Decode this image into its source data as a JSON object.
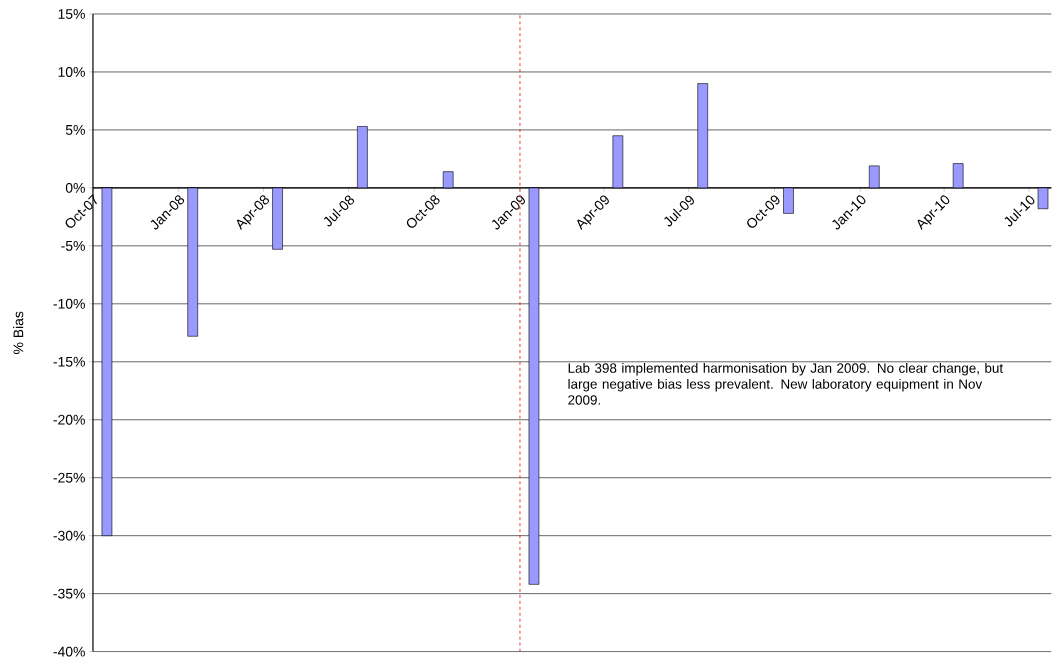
{
  "chart_data": {
    "type": "bar",
    "ylabel": "% Bias",
    "x": [
      "2007-10-16",
      "2008-01-16",
      "2008-04-16",
      "2008-07-16",
      "2008-10-16",
      "2009-01-16",
      "2009-04-16",
      "2009-07-16",
      "2009-10-16",
      "2010-01-16",
      "2010-04-16",
      "2010-07-16"
    ],
    "values": [
      -30,
      -12.8,
      -5.3,
      5.3,
      1.4,
      -34.2,
      4.5,
      9.0,
      -2.2,
      1.9,
      2.1,
      -1.8
    ],
    "color": "#9999ff",
    "xlim": [
      "2007-10-01",
      "2010-07-25"
    ],
    "xticks": [
      {
        "value": "2007-10-01",
        "label": "Oct-07"
      },
      {
        "value": "2008-01-01",
        "label": "Jan-08"
      },
      {
        "value": "2008-04-01",
        "label": "Apr-08"
      },
      {
        "value": "2008-07-01",
        "label": "Jul-08"
      },
      {
        "value": "2008-10-01",
        "label": "Oct-08"
      },
      {
        "value": "2009-01-01",
        "label": "Jan-09"
      },
      {
        "value": "2009-04-01",
        "label": "Apr-09"
      },
      {
        "value": "2009-07-01",
        "label": "Jul-09"
      },
      {
        "value": "2009-10-01",
        "label": "Oct-09"
      },
      {
        "value": "2010-01-01",
        "label": "Jan-10"
      },
      {
        "value": "2010-04-01",
        "label": "Apr-10"
      },
      {
        "value": "2010-07-01",
        "label": "Jul-10"
      }
    ],
    "ylim": [
      -40,
      15
    ],
    "yticks": [
      {
        "value": -40,
        "label": "-40%"
      },
      {
        "value": -35,
        "label": "-35%"
      },
      {
        "value": -30,
        "label": "-30%"
      },
      {
        "value": -25,
        "label": "-25%"
      },
      {
        "value": -20,
        "label": "-20%"
      },
      {
        "value": -15,
        "label": "-15%"
      },
      {
        "value": -10,
        "label": "-10%"
      },
      {
        "value": -5,
        "label": "-5%"
      },
      {
        "value": 0,
        "label": "0%"
      },
      {
        "value": 5,
        "label": "5%"
      },
      {
        "value": 10,
        "label": "10%"
      },
      {
        "value": 15,
        "label": "15%"
      }
    ],
    "grid": "y",
    "ref_lines": [
      {
        "axis": "x",
        "value": "2009-01-01",
        "color": "#ff0000",
        "line_style": "dashed"
      }
    ],
    "annotations": [
      "Lab 398 implemented harmonisation by Jan 2009. No clear change, but large negative bias less prevalent. New laboratory equipment in Nov 2009."
    ]
  }
}
